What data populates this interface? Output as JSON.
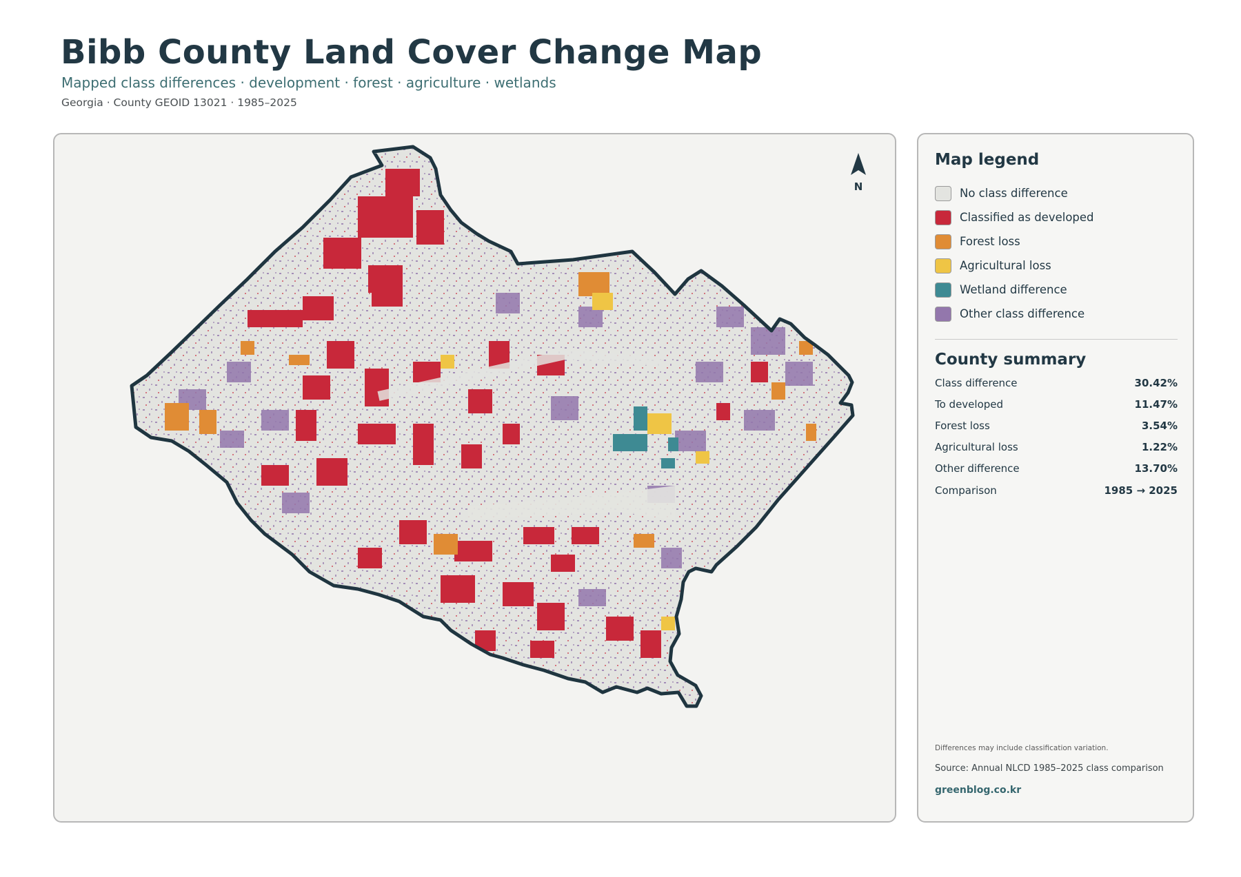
{
  "header": {
    "title": "Bibb County Land Cover Change Map",
    "subtitle": "Mapped class differences · development · forest · agriculture · wetlands",
    "meta": "Georgia · County GEOID 13021 · 1985–2025"
  },
  "map": {
    "north_label": "N",
    "background_class": "No class difference",
    "outline_color": "#1f3540"
  },
  "legend": {
    "heading": "Map legend",
    "items": [
      {
        "label": "No class difference",
        "color": "#e3e4e0"
      },
      {
        "label": "Classified as developed",
        "color": "#c8283a"
      },
      {
        "label": "Forest loss",
        "color": "#e08c35"
      },
      {
        "label": "Agricultural loss",
        "color": "#efc545"
      },
      {
        "label": "Wetland difference",
        "color": "#3e8a93"
      },
      {
        "label": "Other class difference",
        "color": "#9377ac"
      }
    ]
  },
  "summary": {
    "heading": "County summary",
    "rows": [
      {
        "label": "Class difference",
        "value": "30.42%"
      },
      {
        "label": "To developed",
        "value": "11.47%"
      },
      {
        "label": "Forest loss",
        "value": "3.54%"
      },
      {
        "label": "Agricultural loss",
        "value": "1.22%"
      },
      {
        "label": "Other difference",
        "value": "13.70%"
      },
      {
        "label": "Comparison",
        "value": "1985 → 2025"
      }
    ]
  },
  "footer": {
    "note": "Differences may include classification variation.",
    "source": "Source: Annual NLCD 1985–2025 class comparison",
    "site": "greenblog.co.kr"
  }
}
